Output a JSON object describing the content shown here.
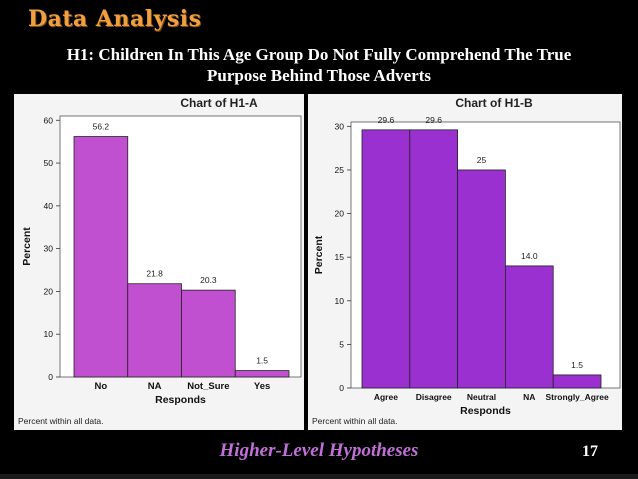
{
  "slide": {
    "title": "Data Analysis",
    "subtitle_line1": "H1: Children In This Age Group Do Not Fully Comprehend The True",
    "subtitle_line2": "Purpose Behind  Those  Adverts",
    "footer": "Higher-Level Hypotheses",
    "page_number": "17"
  },
  "chart_data": [
    {
      "type": "bar",
      "title": "Chart of H1-A",
      "xlabel": "Responds",
      "ylabel": "Percent",
      "note": "Percent within all data.",
      "categories": [
        "No",
        "NA",
        "Not_Sure",
        "Yes"
      ],
      "values": [
        56.2,
        21.8,
        20.3,
        1.5
      ],
      "value_labels": [
        "56.2",
        "21.8",
        "20.3",
        "1.5"
      ],
      "yticks": [
        0,
        10,
        20,
        30,
        40,
        50,
        60
      ],
      "ylim": [
        0,
        61
      ],
      "bar_color": "#c050d0",
      "grid": false
    },
    {
      "type": "bar",
      "title": "Chart of H1-B",
      "xlabel": "Responds",
      "ylabel": "Percent",
      "note": "Percent within all data.",
      "categories": [
        "Agree",
        "Disagree",
        "Neutral",
        "NA",
        "Strongly_Agree"
      ],
      "values": [
        29.6,
        29.6,
        25,
        14.0,
        1.5
      ],
      "value_labels": [
        "29.6",
        "29.6",
        "25",
        "14.0",
        "1.5"
      ],
      "yticks": [
        0,
        5,
        10,
        15,
        20,
        25,
        30
      ],
      "ylim": [
        0,
        30.5
      ],
      "bar_color": "#9b30d0",
      "grid": false
    }
  ]
}
